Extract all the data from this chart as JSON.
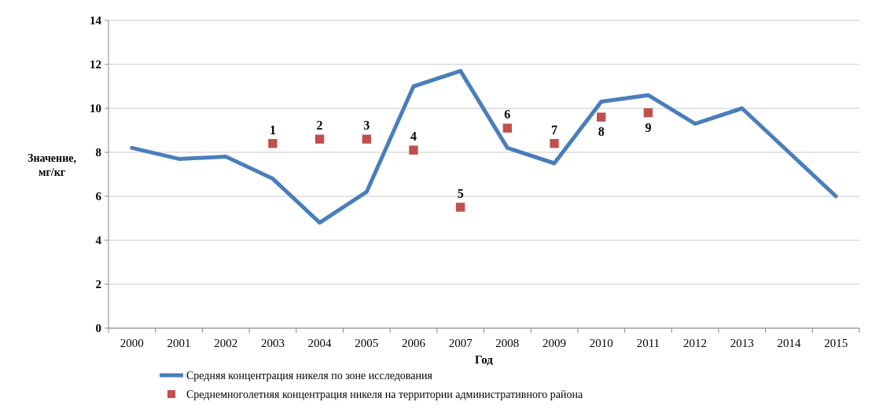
{
  "chart_data": {
    "type": "line",
    "xlabel": "Год",
    "ylabel": "Значение, мг/кг",
    "categories": [
      "2000",
      "2001",
      "2002",
      "2003",
      "2004",
      "2005",
      "2006",
      "2007",
      "2008",
      "2009",
      "2010",
      "2011",
      "2012",
      "2013",
      "2014",
      "2015"
    ],
    "series": [
      {
        "name": "Средняя концентрация никеля по зоне исследования",
        "color": "#4a7ebb",
        "marker": "none",
        "values": [
          8.2,
          7.7,
          7.8,
          6.8,
          4.8,
          6.2,
          11.0,
          11.7,
          8.2,
          7.5,
          10.3,
          10.6,
          9.3,
          10.0,
          8.0,
          6.0
        ]
      },
      {
        "name": "Среднемноголетняя концентрация никеля на территории административного района",
        "color": "#c0504d",
        "type": "scatter",
        "marker": "square",
        "values": [
          null,
          null,
          null,
          8.4,
          8.6,
          8.6,
          8.1,
          5.5,
          9.1,
          8.4,
          9.6,
          9.8,
          null,
          null,
          null,
          null
        ]
      }
    ],
    "annotations": [
      {
        "text": "1",
        "x": "2003",
        "y": 8.4
      },
      {
        "text": "2",
        "x": "2004",
        "y": 8.6
      },
      {
        "text": "3",
        "x": "2005",
        "y": 8.6
      },
      {
        "text": "4",
        "x": "2006",
        "y": 8.1
      },
      {
        "text": "5",
        "x": "2007",
        "y": 5.5
      },
      {
        "text": "6",
        "x": "2008",
        "y": 9.1
      },
      {
        "text": "7",
        "x": "2009",
        "y": 8.4
      },
      {
        "text": "8",
        "x": "2010",
        "y": 9.6
      },
      {
        "text": "9",
        "x": "2011",
        "y": 9.8
      }
    ],
    "ylim": [
      0,
      14
    ],
    "yticks": [
      0,
      2,
      4,
      6,
      8,
      10,
      12,
      14
    ],
    "grid": "y",
    "legend": "bottom"
  }
}
